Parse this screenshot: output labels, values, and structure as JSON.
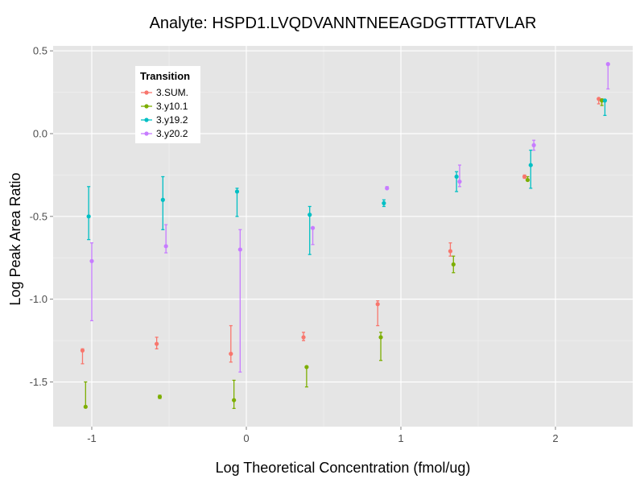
{
  "chart_data": {
    "type": "scatter",
    "title": "Analyte: HSPD1.LVQDVANNTNEEAGDGTTTATVLAR",
    "xlabel": "Log Theoretical Concentration (fmol/ug)",
    "ylabel": "Log Peak Area Ratio",
    "xlim": [
      -1.25,
      2.5
    ],
    "ylim": [
      -1.77,
      0.53
    ],
    "x_ticks": [
      -1,
      0,
      1,
      2
    ],
    "x_tick_labels": [
      "-1",
      "0",
      "1",
      "2"
    ],
    "y_ticks": [
      0.5,
      0.0,
      -0.5,
      -1.0,
      -1.5
    ],
    "y_tick_labels": [
      "0.5",
      "0.0",
      "-0.5",
      "-1.0",
      "-1.5"
    ],
    "grid": true,
    "legend": {
      "title": "Transition",
      "position": "top-left inside"
    },
    "series": [
      {
        "name": "3.SUM.",
        "color": "#F8766D",
        "points": [
          {
            "x": -1.06,
            "y": -1.31,
            "low": -1.39,
            "high": -1.3
          },
          {
            "x": -0.58,
            "y": -1.27,
            "low": -1.3,
            "high": -1.23
          },
          {
            "x": -0.1,
            "y": -1.33,
            "low": -1.38,
            "high": -1.16
          },
          {
            "x": 0.37,
            "y": -1.23,
            "low": -1.25,
            "high": -1.2
          },
          {
            "x": 0.85,
            "y": -1.03,
            "low": -1.16,
            "high": -1.01
          },
          {
            "x": 1.32,
            "y": -0.71,
            "low": -0.74,
            "high": -0.66
          },
          {
            "x": 1.8,
            "y": -0.26,
            "low": -0.27,
            "high": -0.25
          },
          {
            "x": 2.28,
            "y": 0.21,
            "low": 0.18,
            "high": 0.21
          }
        ]
      },
      {
        "name": "3.y10.1",
        "color": "#7CAE00",
        "points": [
          {
            "x": -1.04,
            "y": -1.65,
            "low": -1.65,
            "high": -1.5
          },
          {
            "x": -0.56,
            "y": -1.59,
            "low": -1.6,
            "high": -1.58
          },
          {
            "x": -0.08,
            "y": -1.61,
            "low": -1.66,
            "high": -1.49
          },
          {
            "x": 0.39,
            "y": -1.41,
            "low": -1.53,
            "high": -1.41
          },
          {
            "x": 0.87,
            "y": -1.23,
            "low": -1.37,
            "high": -1.2
          },
          {
            "x": 1.34,
            "y": -0.79,
            "low": -0.84,
            "high": -0.74
          },
          {
            "x": 1.82,
            "y": -0.28,
            "low": -0.28,
            "high": -0.26
          },
          {
            "x": 2.3,
            "y": 0.2,
            "low": 0.17,
            "high": 0.21
          }
        ]
      },
      {
        "name": "3.y19.2",
        "color": "#00BFC4",
        "points": [
          {
            "x": -1.02,
            "y": -0.5,
            "low": -0.64,
            "high": -0.32
          },
          {
            "x": -0.54,
            "y": -0.4,
            "low": -0.58,
            "high": -0.26
          },
          {
            "x": -0.06,
            "y": -0.35,
            "low": -0.5,
            "high": -0.33
          },
          {
            "x": 0.41,
            "y": -0.49,
            "low": -0.73,
            "high": -0.44
          },
          {
            "x": 0.89,
            "y": -0.42,
            "low": -0.44,
            "high": -0.4
          },
          {
            "x": 1.36,
            "y": -0.26,
            "low": -0.35,
            "high": -0.23
          },
          {
            "x": 1.84,
            "y": -0.19,
            "low": -0.33,
            "high": -0.1
          },
          {
            "x": 2.32,
            "y": 0.2,
            "low": 0.11,
            "high": 0.2
          }
        ]
      },
      {
        "name": "3.y20.2",
        "color": "#C77CFF",
        "points": [
          {
            "x": -1.0,
            "y": -0.77,
            "low": -1.13,
            "high": -0.66
          },
          {
            "x": -0.52,
            "y": -0.68,
            "low": -0.72,
            "high": -0.55
          },
          {
            "x": -0.04,
            "y": -0.7,
            "low": -1.44,
            "high": -0.58
          },
          {
            "x": 0.43,
            "y": -0.57,
            "low": -0.67,
            "high": -0.57
          },
          {
            "x": 0.91,
            "y": -0.33,
            "low": -0.33,
            "high": -0.32
          },
          {
            "x": 1.38,
            "y": -0.29,
            "low": -0.32,
            "high": -0.19
          },
          {
            "x": 1.86,
            "y": -0.07,
            "low": -0.1,
            "high": -0.04
          },
          {
            "x": 2.34,
            "y": 0.42,
            "low": 0.27,
            "high": 0.42
          }
        ]
      }
    ]
  }
}
